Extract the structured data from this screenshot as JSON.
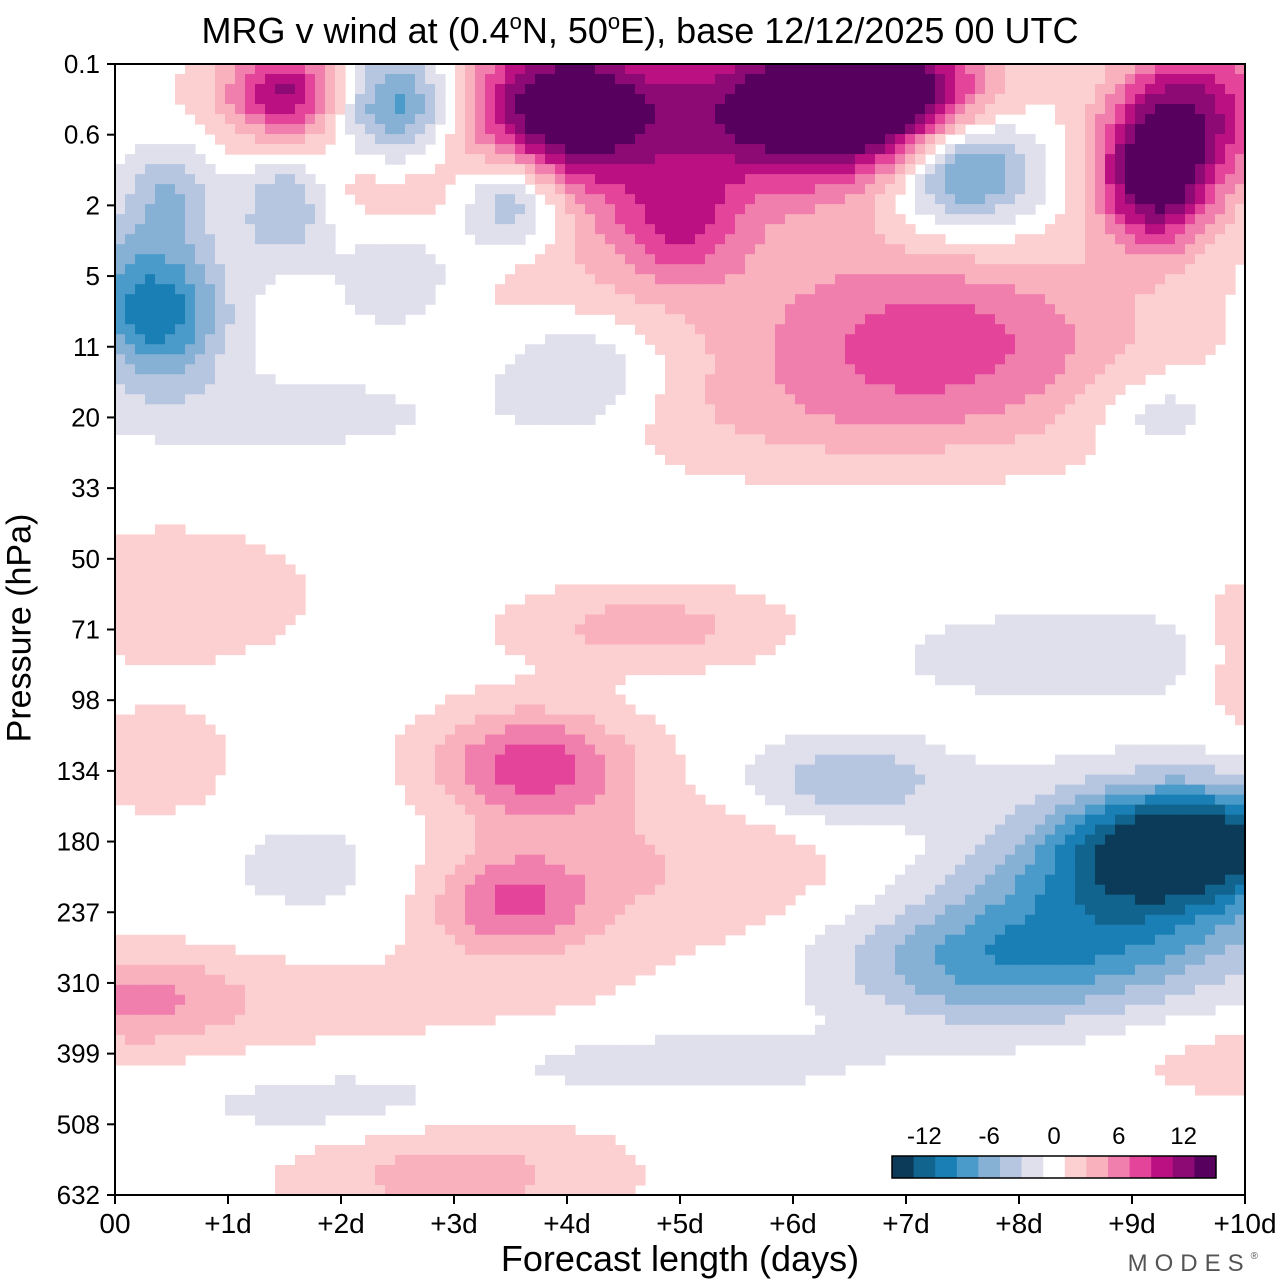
{
  "title_parts": {
    "prefix": "MRG v wind at (0.4",
    "deg1": "o",
    "middle": "N, 50",
    "deg2": "o",
    "suffix": "E),  base 12/12/2025  00 UTC"
  },
  "brand": {
    "name": "MODES",
    "mark": "®"
  },
  "colors": {
    "scale": [
      "#0b3b59",
      "#10648e",
      "#1a7fb5",
      "#4a9bc9",
      "#86b1d5",
      "#b6c6e0",
      "#e0dfec",
      "#ffffff",
      "#fcd0d0",
      "#f8b1bd",
      "#f07fad",
      "#e4449a",
      "#bb1082",
      "#8d0a74",
      "#58005e"
    ]
  },
  "chart_data": {
    "type": "heatmap",
    "title": "MRG v wind at (0.4°N, 50°E),  base 12/12/2025  00 UTC",
    "xlabel": "Forecast length (days)",
    "ylabel": "Pressure (hPa)",
    "xlim": [
      0,
      10
    ],
    "x_ticks": [
      0,
      1,
      2,
      3,
      4,
      5,
      6,
      7,
      8,
      9,
      10
    ],
    "x_tick_labels": [
      "00",
      "+1d",
      "+2d",
      "+3d",
      "+4d",
      "+5d",
      "+6d",
      "+7d",
      "+8d",
      "+9d",
      "+10d"
    ],
    "y_levels": [
      0.1,
      0.6,
      2,
      5,
      11,
      20,
      33,
      50,
      71,
      98,
      134,
      180,
      237,
      310,
      399,
      508,
      632
    ],
    "y_tick_labels": [
      "0.1",
      "0.6",
      "2",
      "5",
      "11",
      "20",
      "33",
      "50",
      "71",
      "98",
      "134",
      "180",
      "237",
      "310",
      "399",
      "508",
      "632"
    ],
    "contour_levels": [
      -14,
      -12,
      -10,
      -8,
      -6,
      -4,
      -2,
      0,
      2,
      4,
      6,
      8,
      10,
      12,
      14
    ],
    "colorbar_labels": [
      {
        "value": -12,
        "label": "-12"
      },
      {
        "value": -6,
        "label": "-6"
      },
      {
        "value": 0,
        "label": "0"
      },
      {
        "value": 6,
        "label": "6"
      },
      {
        "value": 12,
        "label": "12"
      }
    ],
    "legend_position": "bottom-right",
    "units": "m/s",
    "features": [
      {
        "day": 6.0,
        "p": 0.3,
        "value": 14,
        "day_spread": 0.9,
        "level_spread": 0.8
      },
      {
        "day": 4.0,
        "p": 0.3,
        "value": 14,
        "day_spread": 0.55,
        "level_spread": 0.7
      },
      {
        "day": 6.9,
        "p": 0.25,
        "value": 12,
        "day_spread": 0.6,
        "level_spread": 0.6
      },
      {
        "day": 9.2,
        "p": 1.2,
        "value": 14,
        "day_spread": 0.35,
        "level_spread": 0.7
      },
      {
        "day": 9.6,
        "p": 0.3,
        "value": 10,
        "day_spread": 0.5,
        "level_spread": 0.8
      },
      {
        "day": 1.5,
        "p": 0.2,
        "value": 10,
        "day_spread": 0.35,
        "level_spread": 0.45
      },
      {
        "day": 3.0,
        "p": 0.8,
        "value": 4,
        "day_spread": 1.5,
        "level_spread": 1.2
      },
      {
        "day": 2.5,
        "p": 0.3,
        "value": -11,
        "day_spread": 0.4,
        "level_spread": 0.6
      },
      {
        "day": 7.5,
        "p": 1.0,
        "value": -11,
        "day_spread": 0.45,
        "level_spread": 0.6
      },
      {
        "day": 3.5,
        "p": 1.8,
        "value": -9,
        "day_spread": 0.35,
        "level_spread": 0.55
      },
      {
        "day": 1.5,
        "p": 2.0,
        "value": -7,
        "day_spread": 0.3,
        "level_spread": 0.6
      },
      {
        "day": 0.5,
        "p": 1.5,
        "value": -5,
        "day_spread": 0.3,
        "level_spread": 0.5
      },
      {
        "day": 5.0,
        "p": 2.5,
        "value": 6,
        "day_spread": 0.4,
        "level_spread": 0.6
      },
      {
        "day": 0.3,
        "p": 5.0,
        "value": -6,
        "day_spread": 0.5,
        "level_spread": 0.7
      },
      {
        "day": 0.4,
        "p": 9.0,
        "value": -7,
        "day_spread": 0.4,
        "level_spread": 0.6
      },
      {
        "day": 2.5,
        "p": 4.5,
        "value": -5,
        "day_spread": 0.45,
        "level_spread": 0.6
      },
      {
        "day": 7.3,
        "p": 10.0,
        "value": 7,
        "day_spread": 1.2,
        "level_spread": 0.8
      },
      {
        "day": 5.2,
        "p": 4.0,
        "value": 2,
        "day_spread": 2.5,
        "level_spread": 1.0
      },
      {
        "day": 4.1,
        "p": 14.0,
        "value": -4,
        "day_spread": 0.5,
        "level_spread": 0.6
      },
      {
        "day": 1.5,
        "p": 19.0,
        "value": -2,
        "day_spread": 1.2,
        "level_spread": 0.4
      },
      {
        "day": 9.2,
        "p": 19.0,
        "value": -3,
        "day_spread": 0.4,
        "level_spread": 0.4
      },
      {
        "day": 6.5,
        "p": 20.0,
        "value": 3,
        "day_spread": 1.6,
        "level_spread": 0.6
      },
      {
        "day": 3.7,
        "p": 130.0,
        "value": 8,
        "day_spread": 0.6,
        "level_spread": 0.55
      },
      {
        "day": 3.5,
        "p": 230.0,
        "value": 6,
        "day_spread": 0.5,
        "level_spread": 0.5
      },
      {
        "day": 4.5,
        "p": 200.0,
        "value": 3,
        "day_spread": 1.5,
        "level_spread": 0.8
      },
      {
        "day": 4.7,
        "p": 70.0,
        "value": 4,
        "day_spread": 0.8,
        "level_spread": 0.4
      },
      {
        "day": 0.5,
        "p": 60.0,
        "value": 2,
        "day_spread": 1.0,
        "level_spread": 0.8
      },
      {
        "day": 0.2,
        "p": 330.0,
        "value": 4,
        "day_spread": 0.6,
        "level_spread": 0.5
      },
      {
        "day": 1.3,
        "p": 330.0,
        "value": 2,
        "day_spread": 2.2,
        "level_spread": 0.5
      },
      {
        "day": 3.0,
        "p": 590.0,
        "value": 4,
        "day_spread": 1.0,
        "level_spread": 0.55
      },
      {
        "day": 9.5,
        "p": 180.0,
        "value": -14,
        "day_spread": 0.7,
        "level_spread": 0.55
      },
      {
        "day": 8.9,
        "p": 230.0,
        "value": -9,
        "day_spread": 1.0,
        "level_spread": 0.9
      },
      {
        "day": 7.6,
        "p": 290.0,
        "value": -6,
        "day_spread": 0.9,
        "level_spread": 0.6
      },
      {
        "day": 6.5,
        "p": 140.0,
        "value": -5,
        "day_spread": 0.6,
        "level_spread": 0.4
      },
      {
        "day": 8.5,
        "p": 80.0,
        "value": -3,
        "day_spread": 1.0,
        "level_spread": 0.4
      },
      {
        "day": 2.0,
        "p": 200.0,
        "value": -2,
        "day_spread": 0.9,
        "level_spread": 0.7
      },
      {
        "day": 2.0,
        "p": 480.0,
        "value": -2,
        "day_spread": 1.0,
        "level_spread": 0.4
      },
      {
        "day": 5.0,
        "p": 410.0,
        "value": -2,
        "day_spread": 1.2,
        "level_spread": 0.35
      },
      {
        "day": 0.4,
        "p": 130.0,
        "value": 3,
        "day_spread": 0.4,
        "level_spread": 0.5
      },
      {
        "day": 10.0,
        "p": 80.0,
        "value": 3,
        "day_spread": 0.3,
        "level_spread": 0.7
      },
      {
        "day": 10.0,
        "p": 400.0,
        "value": 2,
        "day_spread": 1.0,
        "level_spread": 0.5
      }
    ]
  }
}
